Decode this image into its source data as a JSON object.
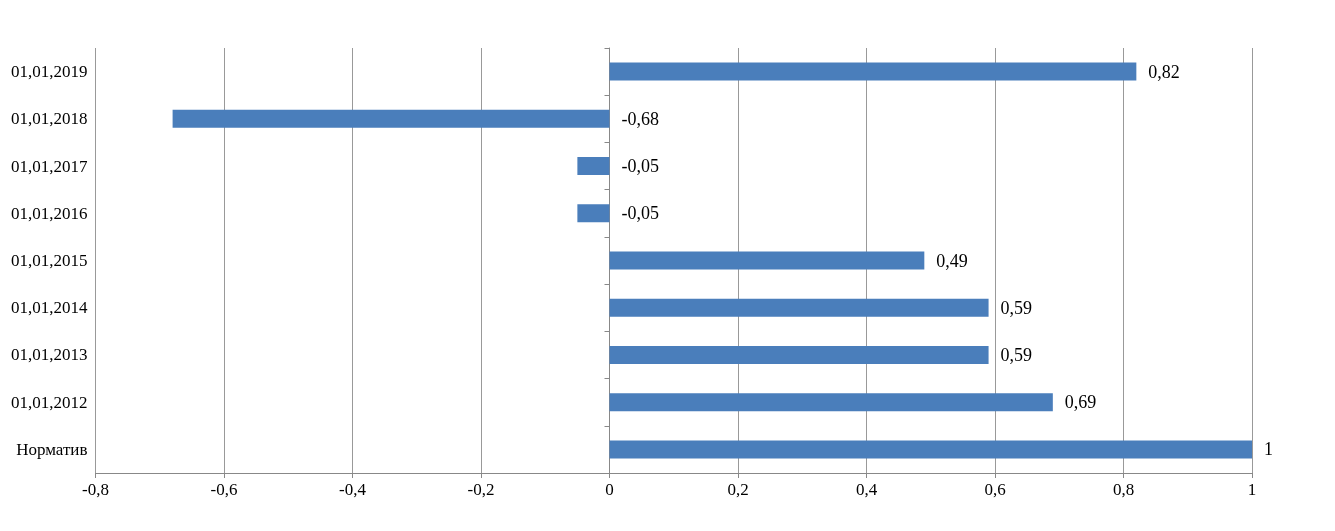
{
  "chart_data": {
    "type": "bar",
    "orientation": "horizontal",
    "categories": [
      "01,01,2019",
      "01,01,2018",
      "01,01,2017",
      "01,01,2016",
      "01,01,2015",
      "01,01,2014",
      "01,01,2013",
      "01,01,2012",
      "Норматив"
    ],
    "values": [
      0.82,
      -0.68,
      -0.05,
      -0.05,
      0.49,
      0.59,
      0.59,
      0.69,
      1
    ],
    "value_labels": [
      "0,82",
      "-0,68",
      "-0,05",
      "-0,05",
      "0,49",
      "0,59",
      "0,59",
      "0,69",
      "1"
    ],
    "color": "#4a7ebb",
    "xlim": [
      -0.8,
      1
    ],
    "xticks": [
      {
        "value": -0.8,
        "label": "-0,8"
      },
      {
        "value": -0.6,
        "label": "-0,6"
      },
      {
        "value": -0.4,
        "label": "-0,4"
      },
      {
        "value": -0.2,
        "label": "-0,2"
      },
      0,
      {
        "value": 0.2,
        "label": "0,2"
      },
      {
        "value": 0.4,
        "label": "0,4"
      },
      {
        "value": 0.6,
        "label": "0,6"
      },
      {
        "value": 0.8,
        "label": "0,8"
      },
      1
    ],
    "grid": "x"
  }
}
